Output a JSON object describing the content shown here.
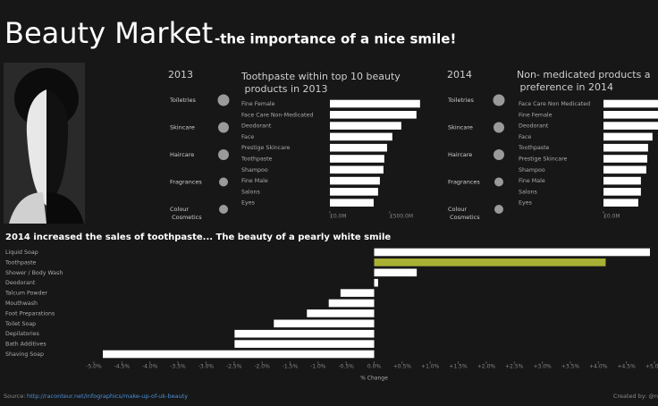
{
  "header": {
    "title": "Beauty Market",
    "subtitle": "-the importance of a nice smile!"
  },
  "chart_data": [
    {
      "type": "bubble",
      "title": "2013",
      "categories": [
        "Toiletries",
        "Skincare",
        "Haircare",
        "Fragrances",
        "Colour Cosmetics"
      ],
      "values": [
        6.5,
        6,
        6,
        5,
        5
      ],
      "color": "#9a9a9a"
    },
    {
      "type": "bar",
      "title": "Toothpaste within top 10 beauty products in 2013",
      "categories": [
        "Fine Female",
        "Face Care Non-Medicated",
        "Deodorant",
        "Face",
        "Prestige Skincare",
        "Toothpaste",
        "Shampoo",
        "Fine Male",
        "Salons",
        "Eyes"
      ],
      "values": [
        754,
        724,
        597,
        522,
        478,
        455,
        448,
        418,
        403,
        366
      ],
      "color": "#ffffff",
      "xlim": [
        0,
        800
      ],
      "xticks": [
        {
          "value": 0,
          "label": "£0.0M"
        },
        {
          "value": 500,
          "label": "£500.0M"
        }
      ]
    },
    {
      "type": "bubble",
      "title": "2014",
      "categories": [
        "Toiletries",
        "Skincare",
        "Haircare",
        "Fragrances",
        "Colour Cosmetics"
      ],
      "values": [
        6.5,
        6,
        6,
        5,
        5
      ],
      "color": "#9a9a9a"
    },
    {
      "type": "bar",
      "title": "Non- medicated products a preference in 2014",
      "categories": [
        "Face Care Non Medicated",
        "Fine Female",
        "Deodorant",
        "Face",
        "Toothpaste",
        "Prestige Skincare",
        "Shampoo",
        "Fine Male",
        "Salons",
        "Eyes"
      ],
      "values": [
        700,
        680,
        560,
        410,
        373,
        366,
        358,
        313,
        313,
        291
      ],
      "color": "#ffffff",
      "xlim": [
        0,
        800
      ],
      "xticks": [
        {
          "value": 0,
          "label": "£0.0M"
        }
      ]
    },
    {
      "type": "bar",
      "title": "2014 increased the sales of toothpaste...  The beauty of a pearly white smile",
      "x_label": "% Change",
      "categories": [
        "Liquid Soap",
        "Toothpaste",
        "Shower / Body Wash",
        "Deodorant",
        "Talcum Powder",
        "Mouthwash",
        "Foot Preparations",
        "Toilet Soap",
        "Depilatories",
        "Bath Additives",
        "Shaving Soap"
      ],
      "values": [
        4.92,
        4.13,
        0.76,
        0.07,
        -0.6,
        -0.81,
        -1.2,
        -1.79,
        -2.49,
        -2.49,
        -4.84
      ],
      "colors": [
        "#ffffff",
        "#a9b135",
        "#ffffff",
        "#ffffff",
        "#ffffff",
        "#ffffff",
        "#ffffff",
        "#ffffff",
        "#ffffff",
        "#ffffff",
        "#ffffff"
      ],
      "xlim": [
        -5,
        5
      ],
      "xticks": [
        {
          "value": -5,
          "label": "-5.0%"
        },
        {
          "value": -4.5,
          "label": "-4.5%"
        },
        {
          "value": -4,
          "label": "-4.0%"
        },
        {
          "value": -3.5,
          "label": "-3.5%"
        },
        {
          "value": -3,
          "label": "-3.0%"
        },
        {
          "value": -2.5,
          "label": "-2.5%"
        },
        {
          "value": -2,
          "label": "-2.0%"
        },
        {
          "value": -1.5,
          "label": "-1.5%"
        },
        {
          "value": -1,
          "label": "-1.0%"
        },
        {
          "value": -0.5,
          "label": "-0.5%"
        },
        {
          "value": 0,
          "label": "0.0%"
        },
        {
          "value": 0.5,
          "label": "+0.5%"
        },
        {
          "value": 1,
          "label": "+1.0%"
        },
        {
          "value": 1.5,
          "label": "+1.5%"
        },
        {
          "value": 2,
          "label": "+2.0%"
        },
        {
          "value": 2.5,
          "label": "+2.5%"
        },
        {
          "value": 3,
          "label": "+3.0%"
        },
        {
          "value": 3.5,
          "label": "+3.5%"
        },
        {
          "value": 4,
          "label": "+4.0%"
        },
        {
          "value": 4.5,
          "label": "+4.5%"
        },
        {
          "value": 5,
          "label": "+5.0%"
        }
      ]
    }
  ],
  "footer": {
    "source_label": "Source:",
    "source_url": "http://raconteur.net/infographics/make-up-of-uk-beauty",
    "credit": "Created by: @n"
  }
}
